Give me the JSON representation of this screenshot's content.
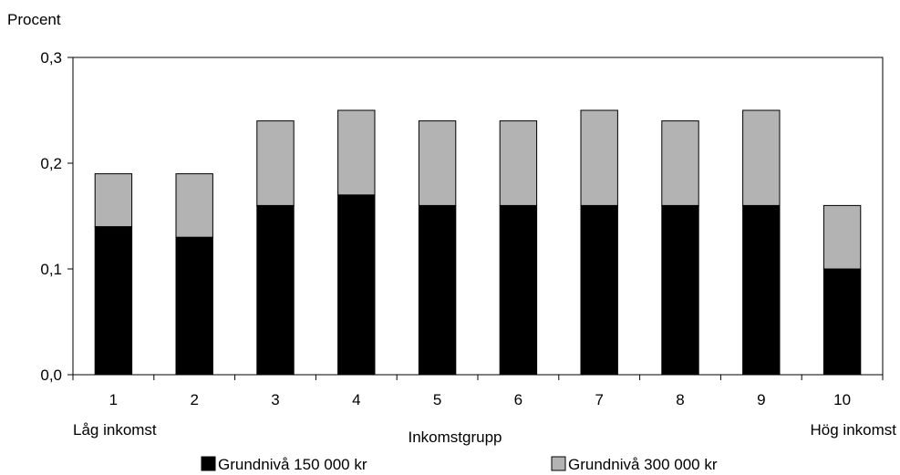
{
  "chart_data": {
    "type": "bar",
    "stacked": true,
    "ylabel": "Procent",
    "xlabel": "Inkomstgrupp",
    "x_left_note": "Låg inkomst",
    "x_right_note": "Hög inkomst",
    "categories": [
      "1",
      "2",
      "3",
      "4",
      "5",
      "6",
      "7",
      "8",
      "9",
      "10"
    ],
    "ylim": [
      0,
      0.3
    ],
    "y_ticks": [
      "0,0",
      "0,1",
      "0,2",
      "0,3"
    ],
    "grid": false,
    "legend_position": "bottom",
    "series": [
      {
        "name": "Grundnivå 150 000 kr",
        "color": "#000000",
        "values": [
          0.14,
          0.13,
          0.16,
          0.17,
          0.16,
          0.16,
          0.16,
          0.16,
          0.16,
          0.1
        ]
      },
      {
        "name": "Grundnivå 300 000 kr",
        "color": "#b3b3b3",
        "values": [
          0.05,
          0.06,
          0.08,
          0.08,
          0.08,
          0.08,
          0.09,
          0.08,
          0.09,
          0.06
        ]
      }
    ]
  }
}
